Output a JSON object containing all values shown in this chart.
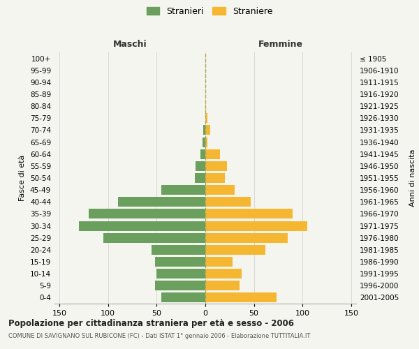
{
  "age_groups": [
    "0-4",
    "5-9",
    "10-14",
    "15-19",
    "20-24",
    "25-29",
    "30-34",
    "35-39",
    "40-44",
    "45-49",
    "50-54",
    "55-59",
    "60-64",
    "65-69",
    "70-74",
    "75-79",
    "80-84",
    "85-89",
    "90-94",
    "95-99",
    "100+"
  ],
  "birth_years": [
    "2001-2005",
    "1996-2000",
    "1991-1995",
    "1986-1990",
    "1981-1985",
    "1976-1980",
    "1971-1975",
    "1966-1970",
    "1961-1965",
    "1956-1960",
    "1951-1955",
    "1946-1950",
    "1941-1945",
    "1936-1940",
    "1931-1935",
    "1926-1930",
    "1921-1925",
    "1916-1920",
    "1911-1915",
    "1906-1910",
    "≤ 1905"
  ],
  "maschi": [
    45,
    52,
    50,
    52,
    55,
    105,
    130,
    120,
    90,
    45,
    11,
    10,
    5,
    3,
    2,
    0,
    0,
    0,
    0,
    0,
    0
  ],
  "femmine": [
    73,
    35,
    37,
    28,
    62,
    85,
    105,
    90,
    47,
    30,
    20,
    22,
    15,
    2,
    5,
    2,
    1,
    0,
    0,
    0,
    0
  ],
  "male_color": "#6a9f5e",
  "female_color": "#f5b731",
  "background_color": "#f5f5f0",
  "grid_color": "#cccccc",
  "title": "Popolazione per cittadinanza straniera per età e sesso - 2006",
  "subtitle": "COMUNE DI SAVIGNANO SUL RUBICONE (FC) - Dati ISTAT 1° gennaio 2006 - Elaborazione TUTTITALIA.IT",
  "ylabel_left": "Fasce di età",
  "ylabel_right": "Anni di nascita",
  "xlabel_left": "Maschi",
  "xlabel_right": "Femmine",
  "legend_male": "Stranieri",
  "legend_female": "Straniere",
  "xlim": 155,
  "dashed_line_color": "#aaa855"
}
